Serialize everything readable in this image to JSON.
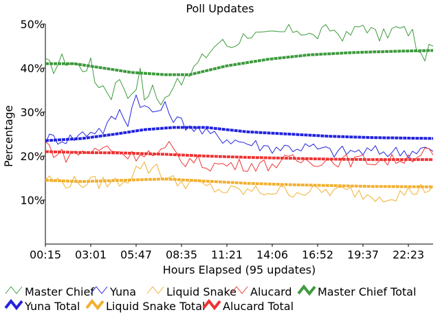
{
  "chart_data": {
    "type": "line",
    "title": "Poll Updates",
    "xlabel": "Hours Elapsed (95 updates)",
    "ylabel": "Percentage",
    "ylim": [
      0,
      50
    ],
    "y_ticks": [
      {
        "value": 10,
        "label": "10%"
      },
      {
        "value": 20,
        "label": "20%"
      },
      {
        "value": 30,
        "label": "30%"
      },
      {
        "value": 40,
        "label": "40%"
      },
      {
        "value": 50,
        "label": "50%"
      }
    ],
    "x_range": [
      1,
      95
    ],
    "x_ticks": [
      {
        "value": 1,
        "label": "00:15"
      },
      {
        "value": 12,
        "label": "03:01"
      },
      {
        "value": 23,
        "label": "05:47"
      },
      {
        "value": 34,
        "label": "08:35"
      },
      {
        "value": 45,
        "label": "11:21"
      },
      {
        "value": 56,
        "label": "14:06"
      },
      {
        "value": 67,
        "label": "16:52"
      },
      {
        "value": 78,
        "label": "19:37"
      },
      {
        "value": 89,
        "label": "22:23"
      }
    ],
    "legend_position": "bottom",
    "series": [
      {
        "name": "Master Chief",
        "color": "#3c9a3c",
        "style": "thin",
        "anchors": [
          [
            1,
            41
          ],
          [
            3,
            40
          ],
          [
            5,
            42
          ],
          [
            8,
            41
          ],
          [
            10,
            40
          ],
          [
            12,
            41
          ],
          [
            13,
            37
          ],
          [
            15,
            36
          ],
          [
            17,
            34
          ],
          [
            19,
            38
          ],
          [
            20,
            36
          ],
          [
            22,
            33
          ],
          [
            24,
            39
          ],
          [
            25,
            33
          ],
          [
            27,
            36
          ],
          [
            29,
            31
          ],
          [
            31,
            35
          ],
          [
            33,
            38
          ],
          [
            35,
            37
          ],
          [
            37,
            40
          ],
          [
            40,
            43
          ],
          [
            43,
            46
          ],
          [
            46,
            45
          ],
          [
            50,
            48
          ],
          [
            54,
            47
          ],
          [
            58,
            48
          ],
          [
            62,
            49
          ],
          [
            66,
            47
          ],
          [
            70,
            49
          ],
          [
            74,
            47
          ],
          [
            78,
            50
          ],
          [
            82,
            47
          ],
          [
            86,
            49
          ],
          [
            90,
            48
          ],
          [
            92,
            42
          ],
          [
            95,
            45
          ]
        ]
      },
      {
        "name": "Yuna",
        "color": "#2222dd",
        "style": "thin",
        "anchors": [
          [
            1,
            24
          ],
          [
            4,
            24
          ],
          [
            7,
            24
          ],
          [
            10,
            25
          ],
          [
            13,
            26
          ],
          [
            15,
            26
          ],
          [
            17,
            28
          ],
          [
            19,
            30
          ],
          [
            21,
            28
          ],
          [
            23,
            34
          ],
          [
            25,
            31
          ],
          [
            27,
            30
          ],
          [
            30,
            31
          ],
          [
            33,
            28
          ],
          [
            36,
            27
          ],
          [
            38,
            26
          ],
          [
            40,
            25
          ],
          [
            45,
            24
          ],
          [
            50,
            23
          ],
          [
            55,
            22
          ],
          [
            60,
            22
          ],
          [
            65,
            22
          ],
          [
            70,
            21
          ],
          [
            75,
            21
          ],
          [
            80,
            21
          ],
          [
            85,
            21
          ],
          [
            90,
            21
          ],
          [
            92,
            22
          ],
          [
            95,
            21
          ]
        ]
      },
      {
        "name": "Liquid Snake",
        "color": "#f0b030",
        "style": "thin",
        "anchors": [
          [
            1,
            15
          ],
          [
            5,
            14
          ],
          [
            10,
            14
          ],
          [
            14,
            14
          ],
          [
            18,
            14
          ],
          [
            21,
            15
          ],
          [
            24,
            18
          ],
          [
            26,
            17
          ],
          [
            28,
            18
          ],
          [
            30,
            15
          ],
          [
            33,
            14
          ],
          [
            36,
            14
          ],
          [
            40,
            13
          ],
          [
            45,
            12
          ],
          [
            50,
            12
          ],
          [
            55,
            12
          ],
          [
            60,
            12
          ],
          [
            65,
            12
          ],
          [
            70,
            12
          ],
          [
            75,
            12
          ],
          [
            80,
            11
          ],
          [
            85,
            11
          ],
          [
            90,
            12
          ],
          [
            95,
            13
          ]
        ]
      },
      {
        "name": "Alucard",
        "color": "#ee3333",
        "style": "thin",
        "anchors": [
          [
            1,
            23
          ],
          [
            3,
            21
          ],
          [
            6,
            20
          ],
          [
            10,
            21
          ],
          [
            13,
            21
          ],
          [
            16,
            22
          ],
          [
            19,
            21
          ],
          [
            22,
            20
          ],
          [
            25,
            21
          ],
          [
            28,
            20
          ],
          [
            31,
            22
          ],
          [
            34,
            19
          ],
          [
            37,
            19
          ],
          [
            40,
            18
          ],
          [
            45,
            18
          ],
          [
            50,
            18
          ],
          [
            55,
            18
          ],
          [
            60,
            19
          ],
          [
            65,
            19
          ],
          [
            70,
            19
          ],
          [
            75,
            19
          ],
          [
            80,
            19
          ],
          [
            85,
            19
          ],
          [
            90,
            20
          ],
          [
            93,
            21
          ],
          [
            95,
            20
          ]
        ]
      },
      {
        "name": "Master Chief Total",
        "color": "#3c9a3c",
        "style": "thick",
        "anchors": [
          [
            1,
            41
          ],
          [
            8,
            41
          ],
          [
            15,
            40
          ],
          [
            22,
            39
          ],
          [
            30,
            38.5
          ],
          [
            36,
            38.5
          ],
          [
            45,
            40.5
          ],
          [
            55,
            42
          ],
          [
            65,
            43
          ],
          [
            75,
            43.5
          ],
          [
            85,
            43.8
          ],
          [
            95,
            44
          ]
        ]
      },
      {
        "name": "Yuna Total",
        "color": "#2222dd",
        "style": "thick",
        "anchors": [
          [
            1,
            23.5
          ],
          [
            10,
            24
          ],
          [
            18,
            25
          ],
          [
            25,
            26
          ],
          [
            32,
            26.5
          ],
          [
            40,
            26.5
          ],
          [
            50,
            25.5
          ],
          [
            60,
            25
          ],
          [
            70,
            24.5
          ],
          [
            80,
            24.2
          ],
          [
            95,
            24
          ]
        ]
      },
      {
        "name": "Liquid Snake Total",
        "color": "#f0b030",
        "style": "thick",
        "anchors": [
          [
            1,
            14.5
          ],
          [
            10,
            14.2
          ],
          [
            20,
            14.5
          ],
          [
            30,
            14.8
          ],
          [
            40,
            14.3
          ],
          [
            50,
            13.8
          ],
          [
            60,
            13.5
          ],
          [
            70,
            13.3
          ],
          [
            80,
            13.1
          ],
          [
            95,
            13
          ]
        ]
      },
      {
        "name": "Alucard Total",
        "color": "#ee3333",
        "style": "thick",
        "anchors": [
          [
            1,
            21
          ],
          [
            10,
            20.8
          ],
          [
            20,
            20.7
          ],
          [
            30,
            20.4
          ],
          [
            40,
            20
          ],
          [
            50,
            19.7
          ],
          [
            60,
            19.5
          ],
          [
            70,
            19.3
          ],
          [
            80,
            19.2
          ],
          [
            95,
            19.2
          ]
        ]
      }
    ]
  }
}
